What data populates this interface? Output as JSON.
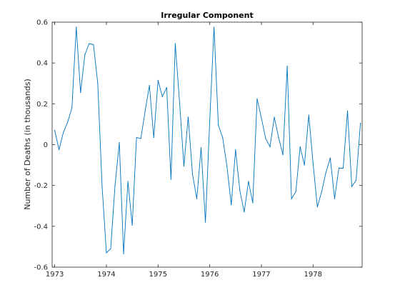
{
  "chart_data": {
    "type": "line",
    "title": "Irregular Component",
    "xlabel": "",
    "ylabel": "Number of Deaths (in thousands)",
    "xlim": [
      1972.95,
      1978.95
    ],
    "ylim": [
      -0.6,
      0.6
    ],
    "x_ticks": [
      "1973",
      "1974",
      "1975",
      "1976",
      "1977",
      "1978"
    ],
    "y_ticks": [
      "-0.6",
      "-0.4",
      "-0.2",
      "0",
      "0.2",
      "0.4",
      "0.6"
    ],
    "grid": false,
    "colors": {
      "series": "#0072bd",
      "axes": "#262626"
    },
    "series": [
      {
        "x": [
          1973.0,
          1973.083,
          1973.167,
          1973.25,
          1973.333,
          1973.417,
          1973.5,
          1973.583,
          1973.667,
          1973.75,
          1973.833,
          1973.917,
          1974.0,
          1974.083,
          1974.167,
          1974.25,
          1974.333,
          1974.417,
          1974.5,
          1974.583,
          1974.667,
          1974.75,
          1974.833,
          1974.917,
          1975.0,
          1975.083,
          1975.167,
          1975.25,
          1975.333,
          1975.417,
          1975.5,
          1975.583,
          1975.667,
          1975.75,
          1975.833,
          1975.917,
          1976.0,
          1976.083,
          1976.167,
          1976.25,
          1976.333,
          1976.417,
          1976.5,
          1976.583,
          1976.667,
          1976.75,
          1976.833,
          1976.917,
          1977.0,
          1977.083,
          1977.167,
          1977.25,
          1977.333,
          1977.417,
          1977.5,
          1977.583,
          1977.667,
          1977.75,
          1977.833,
          1977.917,
          1978.0,
          1978.083,
          1978.167,
          1978.25,
          1978.333,
          1978.417,
          1978.5,
          1978.583,
          1978.667,
          1978.75,
          1978.833,
          1978.917
        ],
        "y": [
          0.07,
          -0.025,
          0.06,
          0.11,
          0.18,
          0.575,
          0.255,
          0.44,
          0.495,
          0.49,
          0.3,
          -0.205,
          -0.53,
          -0.51,
          -0.2,
          0.01,
          -0.535,
          -0.18,
          -0.395,
          0.035,
          0.03,
          0.165,
          0.29,
          0.035,
          0.315,
          0.235,
          0.28,
          -0.17,
          0.495,
          0.205,
          -0.105,
          0.135,
          -0.145,
          -0.265,
          -0.015,
          -0.38,
          0.115,
          0.575,
          0.095,
          0.035,
          -0.105,
          -0.295,
          -0.025,
          -0.225,
          -0.33,
          -0.18,
          -0.285,
          0.225,
          0.13,
          0.03,
          -0.01,
          0.135,
          0.035,
          -0.05,
          0.385,
          -0.265,
          -0.23,
          -0.01,
          -0.1,
          0.145,
          -0.09,
          -0.305,
          -0.23,
          -0.135,
          -0.065,
          -0.265,
          -0.115,
          -0.115,
          0.165,
          -0.205,
          -0.175,
          0.105
        ]
      }
    ]
  }
}
